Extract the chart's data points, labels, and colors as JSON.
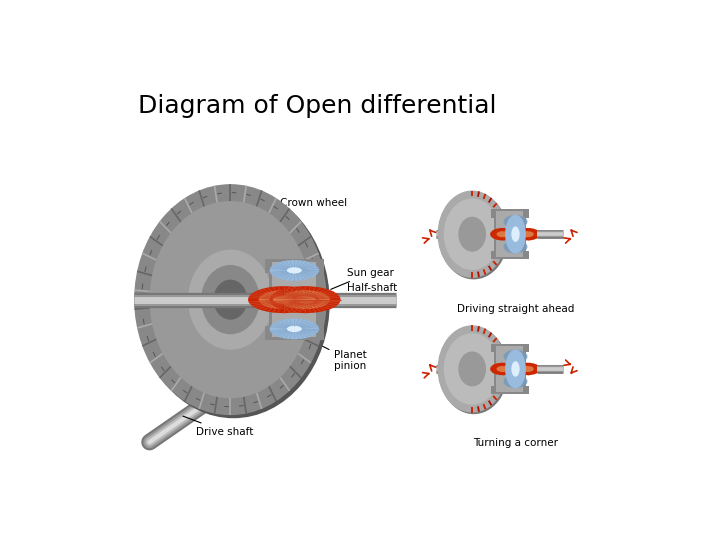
{
  "title": "Diagram of Open differential",
  "title_fontsize": 18,
  "bg_color": "#ffffff",
  "label_crown_wheel": "Crown wheel",
  "label_sun_gear": "Sun gear",
  "label_half_shaft": "Half-shaft",
  "label_planet_pinion": "Planet\npinion",
  "label_drive_shaft": "Drive shaft",
  "label_driving_straight": "Driving straight ahead",
  "label_turning_corner": "Turning a corner",
  "label_fontsize": 7.5,
  "red": "#cc2200",
  "orange": "#dd7744",
  "blue_light": "#99bbdd",
  "blue_mid": "#7799bb",
  "gray_dark": "#666666",
  "gray_mid": "#999999",
  "gray_light": "#bbbbbb",
  "gray_lighter": "#cccccc",
  "gray_crown": "#888888",
  "shaft_dark": "#888888",
  "shaft_light": "#cccccc",
  "white": "#ffffff",
  "black": "#000000"
}
